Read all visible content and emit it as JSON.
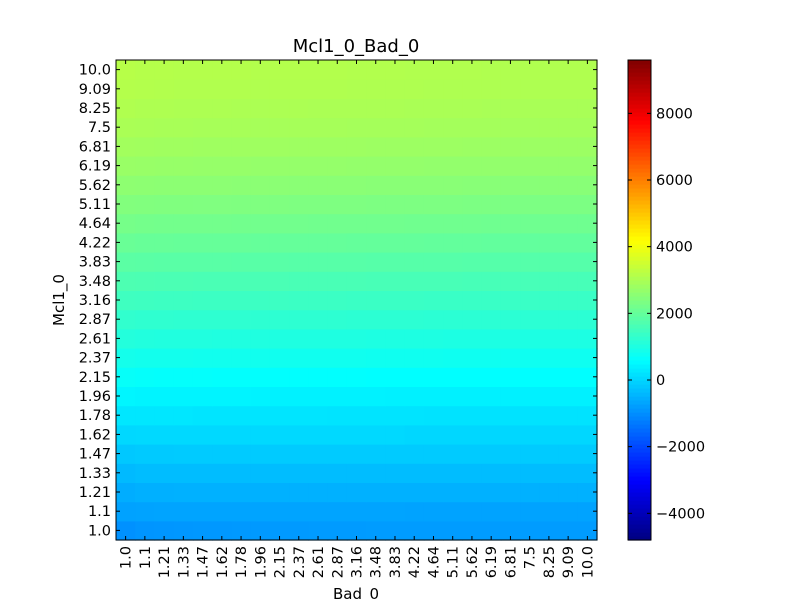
{
  "chart_data": {
    "type": "heatmap",
    "title": "Mcl1_0_Bad_0",
    "xlabel": "Bad_0",
    "ylabel": "Mcl1_0",
    "x_ticks": [
      "1.0",
      "1.1",
      "1.21",
      "1.33",
      "1.47",
      "1.62",
      "1.78",
      "1.96",
      "2.15",
      "2.37",
      "2.61",
      "2.87",
      "3.16",
      "3.48",
      "3.83",
      "4.22",
      "4.64",
      "5.11",
      "5.62",
      "6.19",
      "6.81",
      "7.5",
      "8.25",
      "9.09",
      "10.0"
    ],
    "y_ticks": [
      "1.0",
      "1.1",
      "1.21",
      "1.33",
      "1.47",
      "1.62",
      "1.78",
      "1.96",
      "2.15",
      "2.37",
      "2.61",
      "2.87",
      "3.16",
      "3.48",
      "3.83",
      "4.22",
      "4.64",
      "5.11",
      "5.62",
      "6.19",
      "6.81",
      "7.5",
      "8.25",
      "9.09",
      "10.0"
    ],
    "colormap": "jet",
    "colorbar": {
      "vmin": -4800,
      "vmax": 9600,
      "ticks": [
        -4000,
        -2000,
        0,
        2000,
        4000,
        6000,
        8000
      ],
      "tick_labels": [
        "−4000",
        "−2000",
        "0",
        "2000",
        "4000",
        "6000",
        "8000"
      ]
    },
    "values": [
      [
        -950,
        -900,
        -880,
        -870,
        -860,
        -850,
        -845,
        -840,
        -830,
        -820,
        -815,
        -810,
        -805,
        -800,
        -800,
        -800,
        -800,
        -800,
        -800,
        -800,
        -800,
        -800,
        -800,
        -800,
        -800
      ],
      [
        -720,
        -700,
        -690,
        -680,
        -680,
        -680,
        -680,
        -680,
        -680,
        -680,
        -680,
        -680,
        -680,
        -680,
        -680,
        -700,
        -700,
        -700,
        -700,
        -700,
        -700,
        -700,
        -700,
        -700,
        -700
      ],
      [
        -560,
        -520,
        -510,
        -505,
        -505,
        -505,
        -505,
        -505,
        -505,
        -505,
        -505,
        -505,
        -505,
        -505,
        -505,
        -505,
        -505,
        -505,
        -505,
        -505,
        -505,
        -505,
        -505,
        -505,
        -505
      ],
      [
        -380,
        -330,
        -330,
        -330,
        -330,
        -330,
        -330,
        -330,
        -330,
        -330,
        -330,
        -330,
        -330,
        -330,
        -330,
        -330,
        -330,
        -330,
        -330,
        -330,
        -330,
        -330,
        -330,
        -330,
        -330
      ],
      [
        -180,
        -150,
        -145,
        -140,
        -140,
        -140,
        -140,
        -140,
        -140,
        -140,
        -140,
        -140,
        -140,
        -140,
        -140,
        -140,
        -140,
        -140,
        -140,
        -140,
        -140,
        -140,
        -140,
        -140,
        -140
      ],
      [
        50,
        60,
        65,
        65,
        65,
        65,
        65,
        65,
        65,
        65,
        65,
        65,
        60,
        60,
        60,
        40,
        40,
        40,
        40,
        40,
        40,
        40,
        40,
        40,
        40
      ],
      [
        260,
        260,
        260,
        260,
        240,
        240,
        240,
        240,
        230,
        230,
        230,
        225,
        220,
        220,
        220,
        215,
        210,
        210,
        210,
        210,
        210,
        210,
        210,
        210,
        210
      ],
      [
        470,
        450,
        450,
        450,
        440,
        440,
        440,
        430,
        420,
        420,
        420,
        415,
        410,
        410,
        405,
        400,
        400,
        400,
        400,
        400,
        400,
        400,
        400,
        400,
        400
      ],
      [
        680,
        650,
        640,
        640,
        640,
        630,
        630,
        630,
        620,
        620,
        615,
        610,
        610,
        605,
        600,
        600,
        600,
        600,
        600,
        600,
        600,
        600,
        600,
        600,
        600
      ],
      [
        880,
        860,
        850,
        850,
        845,
        840,
        840,
        835,
        830,
        830,
        825,
        820,
        820,
        815,
        810,
        810,
        805,
        800,
        800,
        800,
        800,
        800,
        800,
        800,
        800
      ],
      [
        1090,
        1060,
        1050,
        1050,
        1045,
        1040,
        1040,
        1035,
        1030,
        1030,
        1025,
        1020,
        1020,
        1015,
        1010,
        1010,
        1005,
        1000,
        1000,
        1000,
        1000,
        1000,
        1000,
        1000,
        1000
      ],
      [
        1290,
        1270,
        1260,
        1255,
        1250,
        1250,
        1245,
        1240,
        1240,
        1235,
        1230,
        1230,
        1225,
        1220,
        1220,
        1215,
        1210,
        1210,
        1205,
        1200,
        1200,
        1200,
        1200,
        1200,
        1200
      ],
      [
        1490,
        1470,
        1460,
        1455,
        1450,
        1450,
        1445,
        1440,
        1440,
        1435,
        1430,
        1430,
        1425,
        1420,
        1420,
        1415,
        1410,
        1410,
        1405,
        1400,
        1400,
        1400,
        1400,
        1400,
        1400
      ],
      [
        1690,
        1670,
        1660,
        1655,
        1650,
        1650,
        1645,
        1640,
        1640,
        1635,
        1630,
        1630,
        1625,
        1620,
        1620,
        1615,
        1610,
        1610,
        1605,
        1600,
        1600,
        1600,
        1600,
        1600,
        1600
      ],
      [
        1890,
        1870,
        1860,
        1855,
        1850,
        1850,
        1845,
        1840,
        1840,
        1835,
        1830,
        1830,
        1825,
        1820,
        1820,
        1815,
        1810,
        1810,
        1805,
        1800,
        1800,
        1800,
        1800,
        1800,
        1800
      ],
      [
        2080,
        2060,
        2050,
        2045,
        2040,
        2040,
        2035,
        2030,
        2030,
        2025,
        2020,
        2020,
        2015,
        2010,
        2010,
        2005,
        2000,
        2000,
        1995,
        1990,
        1990,
        1990,
        1990,
        1990,
        1990
      ],
      [
        2260,
        2240,
        2230,
        2225,
        2220,
        2220,
        2215,
        2210,
        2210,
        2205,
        2200,
        2200,
        2195,
        2190,
        2190,
        2185,
        2180,
        2180,
        2175,
        2170,
        2170,
        2170,
        2170,
        2170,
        2170
      ],
      [
        2440,
        2420,
        2410,
        2405,
        2400,
        2400,
        2395,
        2390,
        2390,
        2385,
        2380,
        2380,
        2375,
        2370,
        2370,
        2365,
        2360,
        2360,
        2355,
        2350,
        2350,
        2350,
        2350,
        2350,
        2350
      ],
      [
        2610,
        2590,
        2580,
        2575,
        2570,
        2570,
        2565,
        2560,
        2560,
        2555,
        2550,
        2550,
        2545,
        2540,
        2540,
        2535,
        2530,
        2530,
        2525,
        2520,
        2520,
        2520,
        2520,
        2520,
        2520
      ],
      [
        2760,
        2740,
        2730,
        2725,
        2720,
        2720,
        2715,
        2710,
        2710,
        2705,
        2700,
        2700,
        2695,
        2690,
        2690,
        2685,
        2680,
        2680,
        2675,
        2670,
        2670,
        2670,
        2670,
        2670,
        2670
      ],
      [
        2890,
        2870,
        2860,
        2855,
        2850,
        2850,
        2845,
        2840,
        2840,
        2835,
        2830,
        2830,
        2825,
        2820,
        2820,
        2815,
        2810,
        2810,
        2805,
        2800,
        2800,
        2800,
        2800,
        2800,
        2800
      ],
      [
        3000,
        2980,
        2970,
        2965,
        2960,
        2960,
        2955,
        2950,
        2950,
        2945,
        2940,
        2940,
        2935,
        2930,
        2930,
        2925,
        2920,
        2920,
        2915,
        2910,
        2910,
        2910,
        2910,
        2910,
        2910
      ],
      [
        3080,
        3060,
        3050,
        3045,
        3040,
        3040,
        3035,
        3030,
        3030,
        3025,
        3020,
        3020,
        3015,
        3010,
        3010,
        3005,
        3000,
        3000,
        2995,
        2990,
        2990,
        2990,
        2990,
        2990,
        2990
      ],
      [
        3140,
        3120,
        3110,
        3105,
        3100,
        3100,
        3095,
        3090,
        3090,
        3085,
        3080,
        3080,
        3075,
        3070,
        3070,
        3065,
        3060,
        3060,
        3055,
        3050,
        3050,
        3050,
        3050,
        3050,
        3050
      ],
      [
        3180,
        3160,
        3150,
        3145,
        3140,
        3140,
        3135,
        3130,
        3130,
        3125,
        3120,
        3120,
        3115,
        3110,
        3110,
        3105,
        3100,
        3100,
        3095,
        3090,
        3090,
        3090,
        3090,
        3090,
        3090
      ]
    ]
  }
}
